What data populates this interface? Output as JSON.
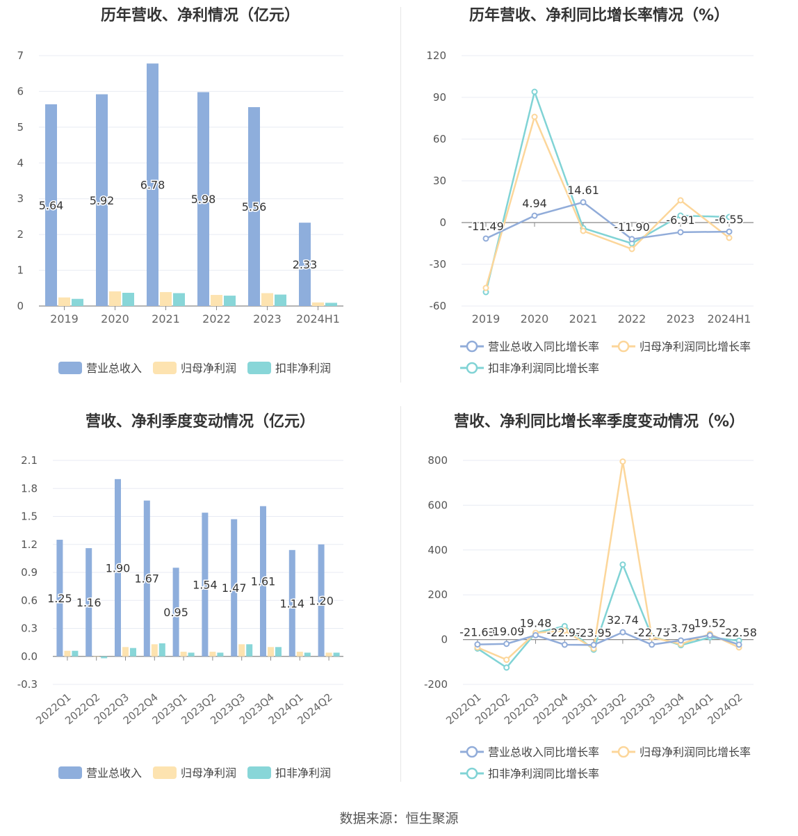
{
  "footer": {
    "source": "数据来源：恒生聚源"
  },
  "colors": {
    "revenue": "#8eaedc",
    "parent_np": "#fde3b0",
    "deducted_np": "#88d6d8",
    "revenue_line": "#91acd9",
    "parent_line": "#fcd69a",
    "deducted_line": "#80d3d5"
  },
  "chart_data": [
    {
      "type": "bar",
      "title": "历年营收、净利情况（亿元）",
      "categories": [
        "2019",
        "2020",
        "2021",
        "2022",
        "2023",
        "2024H1"
      ],
      "ylim": [
        0,
        7
      ],
      "yticks": [
        0,
        1,
        2,
        3,
        4,
        5,
        6,
        7
      ],
      "series": [
        {
          "name": "营业总收入",
          "values": [
            5.64,
            5.92,
            6.78,
            5.98,
            5.56,
            2.33
          ]
        },
        {
          "name": "归母净利润",
          "values": [
            0.24,
            0.41,
            0.39,
            0.31,
            0.36,
            0.1
          ]
        },
        {
          "name": "扣非净利润",
          "values": [
            0.2,
            0.37,
            0.36,
            0.29,
            0.32,
            0.09
          ]
        }
      ],
      "data_labels": [
        "5.64",
        "5.92",
        "6.78",
        "5.98",
        "5.56",
        "2.33"
      ],
      "legend": "bottom"
    },
    {
      "type": "line",
      "title": "历年营收、净利同比增长率情况（%）",
      "categories": [
        "2019",
        "2020",
        "2021",
        "2022",
        "2023",
        "2024H1"
      ],
      "ylim": [
        -60,
        120
      ],
      "yticks": [
        -60,
        -30,
        0,
        30,
        60,
        90,
        120
      ],
      "series": [
        {
          "name": "营业总收入同比增长率",
          "values": [
            -11.49,
            4.94,
            14.61,
            -11.9,
            -6.91,
            -6.55
          ]
        },
        {
          "name": "归母净利润同比增长率",
          "values": [
            -47,
            76,
            -6,
            -19,
            16,
            -11
          ]
        },
        {
          "name": "扣非净利润同比增长率",
          "values": [
            -50,
            94,
            -4,
            -15,
            5,
            4
          ]
        }
      ],
      "data_labels": [
        "-11.49",
        "4.94",
        "14.61",
        "-11.90",
        "-6.91",
        "-6.55"
      ],
      "legend": "bottom"
    },
    {
      "type": "bar",
      "title": "营收、净利季度变动情况（亿元）",
      "categories": [
        "2022Q1",
        "2022Q2",
        "2022Q3",
        "2022Q4",
        "2023Q1",
        "2023Q2",
        "2023Q3",
        "2023Q4",
        "2024Q1",
        "2024Q2"
      ],
      "ylim": [
        -0.3,
        2.1
      ],
      "yticks": [
        -0.3,
        0,
        0.3,
        0.6,
        0.9,
        1.2,
        1.5,
        1.8,
        2.1
      ],
      "series": [
        {
          "name": "营业总收入",
          "values": [
            1.25,
            1.16,
            1.9,
            1.67,
            0.95,
            1.54,
            1.47,
            1.61,
            1.14,
            1.2
          ]
        },
        {
          "name": "归母净利润",
          "values": [
            0.06,
            0.0,
            0.1,
            0.13,
            0.05,
            0.05,
            0.13,
            0.1,
            0.05,
            0.04
          ]
        },
        {
          "name": "扣非净利润",
          "values": [
            0.06,
            -0.02,
            0.09,
            0.14,
            0.04,
            0.04,
            0.13,
            0.1,
            0.04,
            0.04
          ]
        }
      ],
      "data_labels": [
        "1.25",
        "1.16",
        "1.90",
        "1.67",
        "0.95",
        "1.54",
        "1.47",
        "1.61",
        "1.14",
        "1.20"
      ],
      "legend": "bottom"
    },
    {
      "type": "line",
      "title": "营收、净利同比增长率季度变动情况（%）",
      "categories": [
        "2022Q1",
        "2022Q2",
        "2022Q3",
        "2022Q4",
        "2023Q1",
        "2023Q2",
        "2023Q3",
        "2023Q4",
        "2024Q1",
        "2024Q2"
      ],
      "ylim": [
        -200,
        800
      ],
      "yticks": [
        -200,
        0,
        200,
        400,
        600,
        800
      ],
      "series": [
        {
          "name": "营业总收入同比增长率",
          "values": [
            -21.63,
            -19.09,
            19.48,
            -22.97,
            -23.95,
            32.74,
            -22.73,
            -3.79,
            19.52,
            -22.58
          ]
        },
        {
          "name": "归母净利润同比增长率",
          "values": [
            -35,
            -90,
            30,
            40,
            -40,
            795,
            10,
            -20,
            25,
            -35
          ]
        },
        {
          "name": "扣非净利润同比增长率",
          "values": [
            -40,
            -125,
            30,
            60,
            -45,
            335,
            15,
            -25,
            10,
            -5
          ]
        }
      ],
      "data_labels": [
        "-21.63",
        "-19.09",
        "19.48",
        "-22.97",
        "-23.95",
        "32.74",
        "-22.73",
        "-3.79",
        "19.52",
        "-22.58"
      ],
      "legend": "bottom"
    }
  ]
}
